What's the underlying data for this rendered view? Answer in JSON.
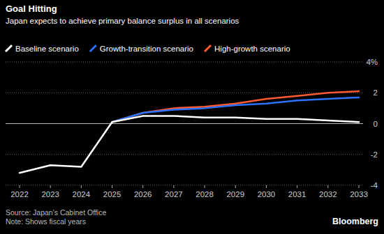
{
  "chart_data": {
    "type": "line",
    "title": "Goal Hitting",
    "subtitle": "Japan expects to achieve primary balance surplus in all scenarios",
    "categories": [
      "2022",
      "2023",
      "2024",
      "2025",
      "2026",
      "2027",
      "2028",
      "2029",
      "2030",
      "2031",
      "2032",
      "2033"
    ],
    "series": [
      {
        "name": "Baseline scenario",
        "color": "#ffffff",
        "values": [
          -3.2,
          -2.7,
          -2.8,
          0.1,
          0.5,
          0.5,
          0.4,
          0.4,
          0.3,
          0.3,
          0.2,
          0.1
        ]
      },
      {
        "name": "Growth-transition scenario",
        "color": "#2a72ff",
        "values": [
          null,
          null,
          null,
          0.1,
          0.7,
          0.9,
          1.0,
          1.2,
          1.3,
          1.5,
          1.6,
          1.7
        ]
      },
      {
        "name": "High-growth scenario",
        "color": "#ff5b2e",
        "values": [
          null,
          null,
          null,
          0.1,
          0.7,
          1.0,
          1.1,
          1.3,
          1.6,
          1.8,
          2.0,
          2.1
        ]
      }
    ],
    "ylim": [
      -4,
      4
    ],
    "yticks": [
      {
        "value": 4,
        "label": "4%"
      },
      2,
      0,
      -2,
      -4
    ],
    "grid": true,
    "legend": "top-left",
    "source": "Source: Japan's Cabinet Office",
    "note": "Note: Shows fiscal years",
    "credit": "Bloomberg"
  }
}
